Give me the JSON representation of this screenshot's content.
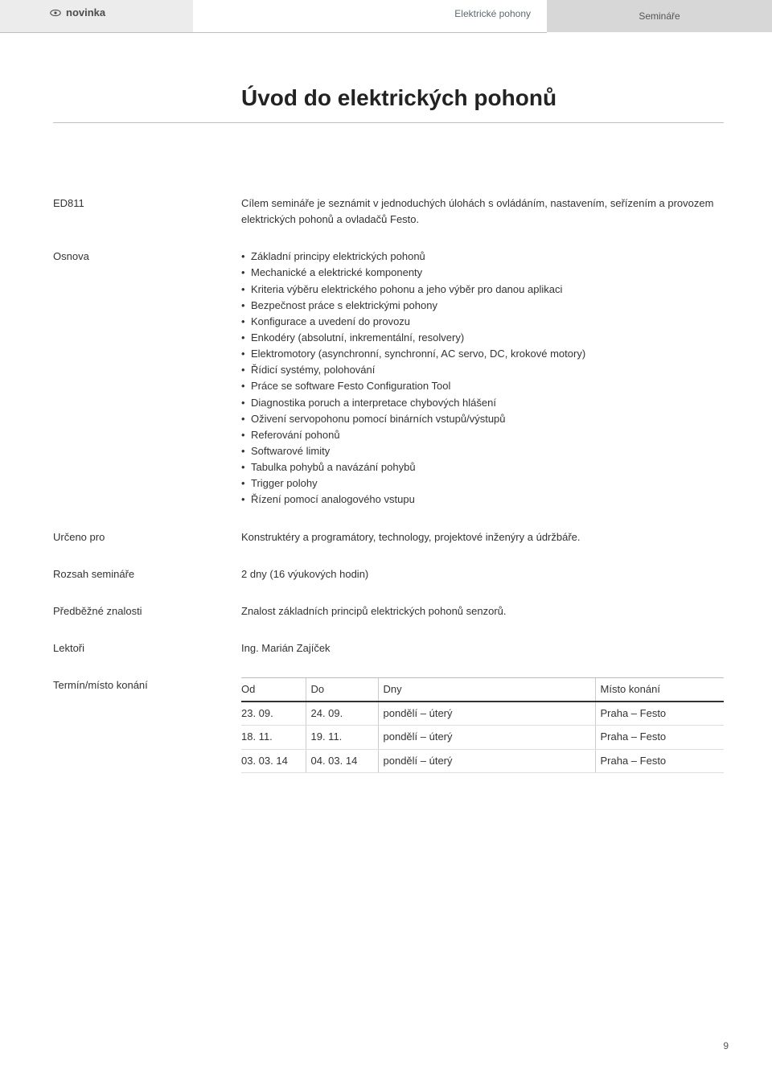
{
  "header": {
    "badge": "novinka",
    "category": "Elektrické pohony",
    "section": "Semináře"
  },
  "title": "Úvod do elektrických pohonů",
  "course_code": "ED811",
  "intro": "Cílem semináře je seznámit v jednoduchých úlohách s ovládáním, nastavením, seřízením a provozem elektrických pohonů a ovladačů Festo.",
  "labels": {
    "osnova": "Osnova",
    "urceno_pro": "Určeno pro",
    "rozsah": "Rozsah semináře",
    "predbezne": "Předběžné znalosti",
    "lektori": "Lektoři",
    "termin": "Termín/místo konání"
  },
  "osnova_items": [
    "Základní principy elektrických pohonů",
    "Mechanické a elektrické komponenty",
    "Kriteria výběru elektrického pohonu a jeho výběr pro danou aplikaci",
    "Bezpečnost práce s elektrickými pohony",
    "Konfigurace a uvedení do provozu",
    "Enkodéry (absolutní, inkrementální, resolvery)",
    "Elektromotory (asynchronní, synchronní, AC servo, DC, krokové motory)",
    "Řídicí systémy, polohování",
    "Práce se software Festo Configuration Tool",
    "Diagnostika poruch a interpretace chybových hlášení",
    "Oživení servopohonu pomocí binárních vstupů/výstupů",
    "Referování pohonů",
    "Softwarové limity",
    "Tabulka pohybů a navázání pohybů",
    "Trigger polohy",
    "Řízení pomocí analogového vstupu"
  ],
  "urceno_pro": "Konstruktéry a programátory, technology, projektové inženýry a údržbáře.",
  "rozsah": "2 dny (16 výukových hodin)",
  "predbezne": "Znalost základních principů elektrických pohonů senzorů.",
  "lektori": "Ing. Marián Zajíček",
  "schedule": {
    "columns": [
      "Od",
      "Do",
      "Dny",
      "Místo konání"
    ],
    "rows": [
      [
        "23. 09.",
        "24. 09.",
        "pondělí – úterý",
        "Praha – Festo"
      ],
      [
        "18. 11.",
        "19. 11.",
        "pondělí – úterý",
        "Praha – Festo"
      ],
      [
        "03. 03. 14",
        "04. 03. 14",
        "pondělí – úterý",
        "Praha – Festo"
      ]
    ]
  },
  "page_number": "9",
  "colors": {
    "bg": "#ffffff",
    "left_strip": "#ececec",
    "right_strip": "#d7d7d7",
    "rule": "#bfbfbf",
    "text": "#333333",
    "muted": "#5a6a72"
  },
  "typography": {
    "title_fontsize": 28,
    "body_fontsize": 13,
    "small_fontsize": 12
  }
}
